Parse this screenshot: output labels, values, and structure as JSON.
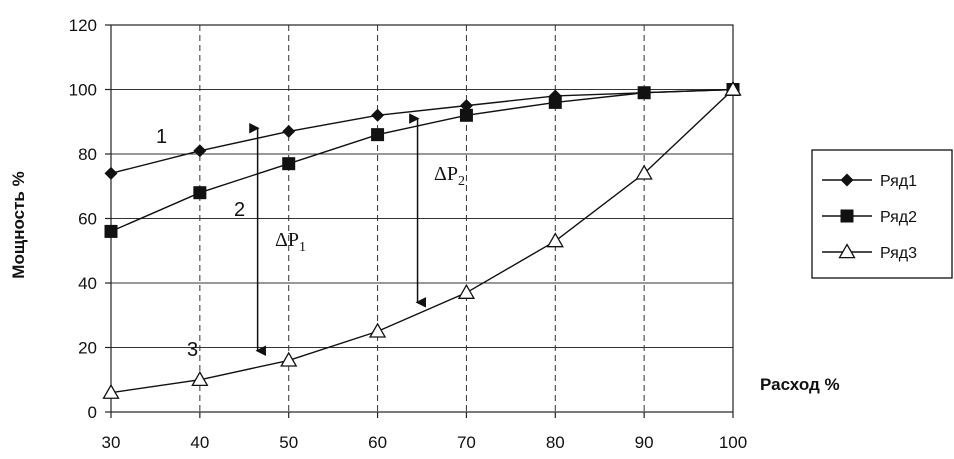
{
  "chart_data": {
    "type": "line",
    "title": "",
    "xlabel": "Расход %",
    "ylabel": "Мощность %",
    "x": [
      30,
      40,
      50,
      60,
      70,
      80,
      90,
      100
    ],
    "xlim": [
      30,
      100
    ],
    "ylim": [
      0,
      120
    ],
    "yticks": [
      0,
      20,
      40,
      60,
      80,
      100,
      120
    ],
    "grid": true,
    "legend_position": "right",
    "series": [
      {
        "name": "Ряд1",
        "marker": "diamond",
        "values": [
          74,
          81,
          87,
          92,
          95,
          98,
          99,
          100
        ]
      },
      {
        "name": "Ряд2",
        "marker": "square",
        "values": [
          56,
          68,
          77,
          86,
          92,
          96,
          99,
          100
        ]
      },
      {
        "name": "Ряд3",
        "marker": "triangle-open",
        "values": [
          6,
          10,
          16,
          25,
          37,
          53,
          74,
          100
        ]
      }
    ],
    "annotations": [
      {
        "id": "label-1",
        "text": "1"
      },
      {
        "id": "label-2",
        "text": "2"
      },
      {
        "id": "label-3",
        "text": "3"
      },
      {
        "id": "delta-p1",
        "text": "ΔP",
        "subscript": "1",
        "arrow_x": 46.5,
        "arrow_from": 88,
        "arrow_to": 19
      },
      {
        "id": "delta-p2",
        "text": "ΔP",
        "subscript": "2",
        "arrow_x": 64.5,
        "arrow_from": 91,
        "arrow_to": 34
      }
    ]
  }
}
